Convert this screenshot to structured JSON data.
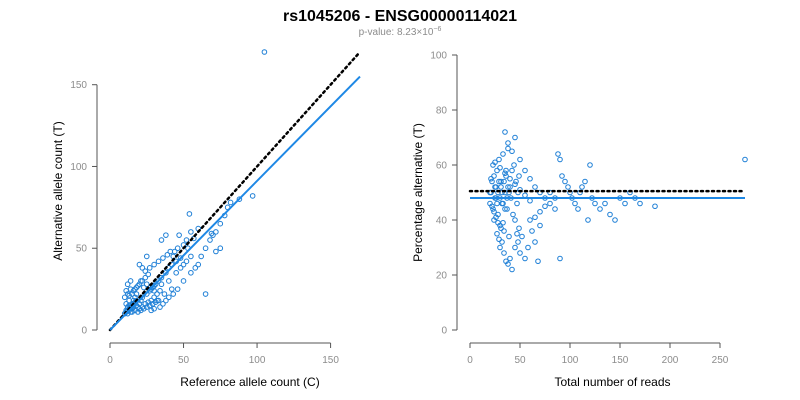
{
  "page": {
    "title": "rs1045206 - ENSG00000114021",
    "subtitle_prefix": "p-value: 8.23×10",
    "subtitle_exp": "−6"
  },
  "colors": {
    "points": "#1e7fd6",
    "fit": "#1e88e5",
    "reference_line": "#000000"
  },
  "chart_data": [
    {
      "type": "scatter",
      "xlabel": "Reference allele count (C)",
      "ylabel": "Alternative allele count (T)",
      "xlim": [
        0,
        170
      ],
      "ylim": [
        0,
        170
      ],
      "xticks": [
        0,
        50,
        100,
        150
      ],
      "yticks": [
        0,
        50,
        100,
        150
      ],
      "grid": false,
      "lines": [
        {
          "style": "dotted",
          "color": "#000000",
          "x": [
            0,
            170
          ],
          "y": [
            0,
            170
          ]
        },
        {
          "style": "solid",
          "color": "#1e88e5",
          "x": [
            0,
            170
          ],
          "y": [
            0,
            155
          ]
        }
      ],
      "points": [
        [
          10,
          10
        ],
        [
          11,
          12
        ],
        [
          12,
          10
        ],
        [
          13,
          15
        ],
        [
          14,
          11
        ],
        [
          15,
          13
        ],
        [
          12,
          14
        ],
        [
          11,
          16
        ],
        [
          13,
          18
        ],
        [
          10,
          20
        ],
        [
          12,
          22
        ],
        [
          14,
          25
        ],
        [
          11,
          24
        ],
        [
          13,
          12
        ],
        [
          15,
          16
        ],
        [
          16,
          18
        ],
        [
          17,
          20
        ],
        [
          18,
          22
        ],
        [
          19,
          14
        ],
        [
          20,
          16
        ],
        [
          21,
          18
        ],
        [
          22,
          20
        ],
        [
          12,
          28
        ],
        [
          14,
          30
        ],
        [
          16,
          24
        ],
        [
          18,
          26
        ],
        [
          20,
          28
        ],
        [
          22,
          30
        ],
        [
          24,
          32
        ],
        [
          26,
          34
        ],
        [
          15,
          11
        ],
        [
          17,
          12
        ],
        [
          19,
          11
        ],
        [
          21,
          12
        ],
        [
          23,
          13
        ],
        [
          25,
          14
        ],
        [
          27,
          15
        ],
        [
          29,
          16
        ],
        [
          31,
          17
        ],
        [
          33,
          18
        ],
        [
          16,
          14
        ],
        [
          18,
          15
        ],
        [
          20,
          13
        ],
        [
          22,
          14
        ],
        [
          24,
          16
        ],
        [
          26,
          17
        ],
        [
          28,
          18
        ],
        [
          30,
          20
        ],
        [
          32,
          22
        ],
        [
          34,
          24
        ],
        [
          25,
          22
        ],
        [
          28,
          25
        ],
        [
          30,
          27
        ],
        [
          33,
          30
        ],
        [
          35,
          32
        ],
        [
          38,
          35
        ],
        [
          40,
          38
        ],
        [
          42,
          40
        ],
        [
          45,
          42
        ],
        [
          48,
          44
        ],
        [
          24,
          36
        ],
        [
          27,
          38
        ],
        [
          30,
          40
        ],
        [
          33,
          42
        ],
        [
          36,
          44
        ],
        [
          39,
          46
        ],
        [
          35,
          55
        ],
        [
          38,
          58
        ],
        [
          44,
          48
        ],
        [
          46,
          50
        ],
        [
          50,
          52
        ],
        [
          52,
          55
        ],
        [
          55,
          60
        ],
        [
          45,
          35
        ],
        [
          48,
          38
        ],
        [
          50,
          40
        ],
        [
          52,
          42
        ],
        [
          55,
          45
        ],
        [
          40,
          30
        ],
        [
          42,
          25
        ],
        [
          35,
          28
        ],
        [
          37,
          22
        ],
        [
          30,
          24
        ],
        [
          32,
          18
        ],
        [
          28,
          12
        ],
        [
          30,
          13
        ],
        [
          34,
          14
        ],
        [
          36,
          16
        ],
        [
          38,
          18
        ],
        [
          40,
          20
        ],
        [
          43,
          22
        ],
        [
          46,
          25
        ],
        [
          50,
          30
        ],
        [
          55,
          35
        ],
        [
          58,
          38
        ],
        [
          60,
          40
        ],
        [
          62,
          45
        ],
        [
          65,
          50
        ],
        [
          68,
          55
        ],
        [
          70,
          58
        ],
        [
          72,
          60
        ],
        [
          75,
          65
        ],
        [
          78,
          70
        ],
        [
          80,
          75
        ],
        [
          82,
          78
        ],
        [
          72,
          48
        ],
        [
          75,
          50
        ],
        [
          65,
          22
        ],
        [
          54,
          71
        ],
        [
          69,
          59
        ],
        [
          20,
          40
        ],
        [
          22,
          38
        ],
        [
          25,
          45
        ],
        [
          60,
          62
        ],
        [
          57,
          56
        ],
        [
          47,
          58
        ],
        [
          43,
          45
        ],
        [
          41,
          48
        ],
        [
          53,
          50
        ],
        [
          88,
          80
        ],
        [
          105,
          170
        ],
        [
          97,
          82
        ],
        [
          13,
          13
        ],
        [
          14,
          14
        ],
        [
          15,
          15
        ],
        [
          16,
          16
        ],
        [
          17,
          17
        ],
        [
          18,
          18
        ],
        [
          11,
          11
        ],
        [
          12,
          12
        ],
        [
          13,
          21
        ],
        [
          15,
          22
        ],
        [
          17,
          25
        ],
        [
          19,
          27
        ],
        [
          21,
          30
        ],
        [
          23,
          26
        ],
        [
          25,
          28
        ],
        [
          27,
          24
        ],
        [
          29,
          26
        ],
        [
          31,
          28
        ]
      ]
    },
    {
      "type": "scatter",
      "xlabel": "Total number of reads",
      "ylabel": "Percentage alternative (T)",
      "xlim": [
        0,
        275
      ],
      "ylim": [
        0,
        100
      ],
      "xticks": [
        0,
        50,
        100,
        150,
        200,
        250
      ],
      "yticks": [
        0,
        20,
        40,
        60,
        80,
        100
      ],
      "grid": false,
      "lines": [
        {
          "style": "dotted",
          "color": "#000000",
          "x": [
            0,
            275
          ],
          "y": [
            50.5,
            50.5
          ]
        },
        {
          "style": "solid",
          "color": "#1e88e5",
          "x": [
            0,
            275
          ],
          "y": [
            48,
            48
          ]
        }
      ],
      "points": [
        [
          20,
          50
        ],
        [
          21,
          55
        ],
        [
          22,
          45
        ],
        [
          23,
          60
        ],
        [
          24,
          40
        ],
        [
          25,
          52
        ],
        [
          26,
          48
        ],
        [
          27,
          58
        ],
        [
          28,
          42
        ],
        [
          29,
          62
        ],
        [
          30,
          38
        ],
        [
          31,
          54
        ],
        [
          32,
          46
        ],
        [
          33,
          64
        ],
        [
          34,
          36
        ],
        [
          35,
          50
        ],
        [
          36,
          56
        ],
        [
          37,
          44
        ],
        [
          38,
          66
        ],
        [
          39,
          34
        ],
        [
          40,
          52
        ],
        [
          41,
          48
        ],
        [
          42,
          58
        ],
        [
          43,
          42
        ],
        [
          44,
          60
        ],
        [
          45,
          40
        ],
        [
          46,
          54
        ],
        [
          47,
          46
        ],
        [
          48,
          50
        ],
        [
          49,
          56
        ],
        [
          20,
          46
        ],
        [
          21,
          50
        ],
        [
          22,
          54
        ],
        [
          23,
          44
        ],
        [
          24,
          56
        ],
        [
          25,
          48
        ],
        [
          26,
          52
        ],
        [
          27,
          46
        ],
        [
          28,
          50
        ],
        [
          29,
          54
        ],
        [
          30,
          48
        ],
        [
          31,
          52
        ],
        [
          32,
          50
        ],
        [
          33,
          46
        ],
        [
          34,
          54
        ],
        [
          35,
          44
        ],
        [
          36,
          58
        ],
        [
          37,
          48
        ],
        [
          38,
          52
        ],
        [
          39,
          50
        ],
        [
          30,
          30
        ],
        [
          32,
          32
        ],
        [
          34,
          28
        ],
        [
          36,
          25
        ],
        [
          38,
          24
        ],
        [
          40,
          26
        ],
        [
          42,
          22
        ],
        [
          45,
          30
        ],
        [
          48,
          32
        ],
        [
          50,
          28
        ],
        [
          52,
          34
        ],
        [
          55,
          26
        ],
        [
          58,
          30
        ],
        [
          60,
          40
        ],
        [
          62,
          36
        ],
        [
          65,
          32
        ],
        [
          68,
          25
        ],
        [
          70,
          38
        ],
        [
          35,
          72
        ],
        [
          38,
          68
        ],
        [
          42,
          65
        ],
        [
          45,
          70
        ],
        [
          50,
          62
        ],
        [
          55,
          58
        ],
        [
          60,
          55
        ],
        [
          65,
          52
        ],
        [
          70,
          50
        ],
        [
          75,
          48
        ],
        [
          80,
          46
        ],
        [
          85,
          44
        ],
        [
          88,
          64
        ],
        [
          90,
          62
        ],
        [
          92,
          56
        ],
        [
          95,
          54
        ],
        [
          98,
          52
        ],
        [
          100,
          50
        ],
        [
          102,
          48
        ],
        [
          105,
          46
        ],
        [
          108,
          44
        ],
        [
          110,
          50
        ],
        [
          112,
          52
        ],
        [
          115,
          54
        ],
        [
          118,
          40
        ],
        [
          120,
          60
        ],
        [
          122,
          48
        ],
        [
          125,
          46
        ],
        [
          130,
          44
        ],
        [
          135,
          46
        ],
        [
          140,
          42
        ],
        [
          145,
          40
        ],
        [
          150,
          48
        ],
        [
          155,
          46
        ],
        [
          160,
          50
        ],
        [
          165,
          48
        ],
        [
          170,
          46
        ],
        [
          185,
          45
        ],
        [
          275,
          62
        ],
        [
          90,
          26
        ],
        [
          85,
          48
        ],
        [
          80,
          50
        ],
        [
          75,
          45
        ],
        [
          70,
          43
        ],
        [
          65,
          41
        ],
        [
          60,
          47
        ],
        [
          55,
          49
        ],
        [
          50,
          51
        ],
        [
          45,
          53
        ],
        [
          40,
          55
        ],
        [
          35,
          57
        ],
        [
          30,
          59
        ],
        [
          25,
          61
        ],
        [
          27,
          35
        ],
        [
          29,
          33
        ],
        [
          31,
          37
        ],
        [
          33,
          39
        ],
        [
          24,
          43
        ],
        [
          26,
          41
        ],
        [
          28,
          39
        ],
        [
          47,
          35
        ],
        [
          49,
          37
        ]
      ]
    }
  ]
}
